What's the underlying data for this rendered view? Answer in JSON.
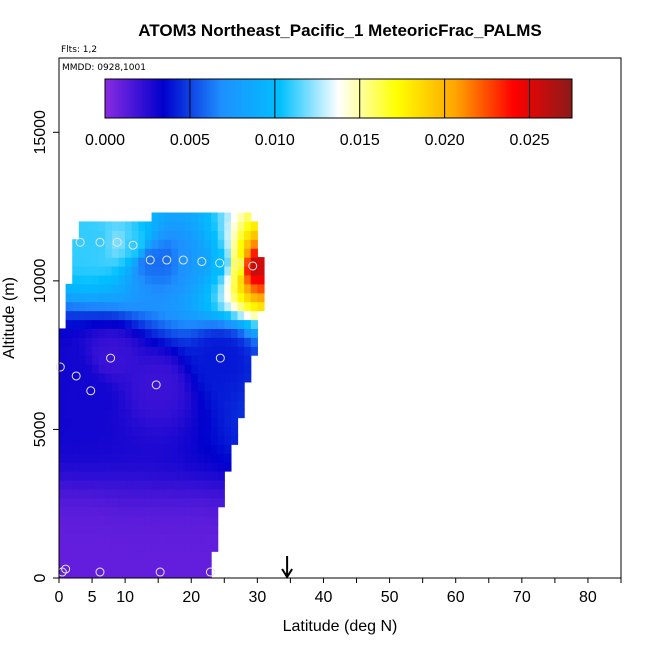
{
  "chart_data": {
    "type": "heatmap",
    "title": "ATOM3 Northeast_Pacific_1 MeteoricFrac_PALMS",
    "subtitle": "Flts: 1,2",
    "date_label": "MMDD: 0928,1001",
    "xlabel": "Latitude (deg N)",
    "ylabel": "Altitude (m)",
    "xlim": [
      0,
      85
    ],
    "ylim": [
      0,
      17500
    ],
    "x_ticks": [
      0,
      5,
      10,
      20,
      30,
      40,
      50,
      60,
      70,
      80
    ],
    "y_ticks": [
      0,
      5000,
      10000,
      15000
    ],
    "colorbar": {
      "range": [
        0,
        0.0275
      ],
      "tick_values": [
        0.0,
        0.005,
        0.01,
        0.015,
        0.02,
        0.025
      ],
      "tick_labels": [
        "0.000",
        "0.005",
        "0.010",
        "0.015",
        "0.020",
        "0.025"
      ],
      "colors": [
        "#8a2be2",
        "#0000cd",
        "#1e90ff",
        "#00bfff",
        "#ffffff",
        "#ffff00",
        "#ffa500",
        "#ff0000",
        "#8b1a1a"
      ]
    },
    "field_extent": {
      "lat_min": 0,
      "lat_max": 31,
      "alt_max": 12400,
      "top_edge": [
        [
          0,
          7900
        ],
        [
          1,
          8800
        ],
        [
          2,
          10800
        ],
        [
          3,
          12000
        ],
        [
          14,
          12000
        ],
        [
          14.5,
          12400
        ],
        [
          29,
          12400
        ],
        [
          30,
          11800
        ],
        [
          31,
          10000
        ],
        [
          30,
          8000
        ],
        [
          28,
          6000
        ],
        [
          26,
          4000
        ],
        [
          24,
          2000
        ],
        [
          23,
          0
        ]
      ]
    },
    "sample_points": [
      {
        "lat": 0.2,
        "alt": 7100,
        "value": 0.003
      },
      {
        "lat": 0.5,
        "alt": 200,
        "value": 0.001
      },
      {
        "lat": 1.0,
        "alt": 300,
        "value": 0.001
      },
      {
        "lat": 2.6,
        "alt": 6800,
        "value": 0.003
      },
      {
        "lat": 3.2,
        "alt": 11300,
        "value": 0.011
      },
      {
        "lat": 4.8,
        "alt": 6300,
        "value": 0.003
      },
      {
        "lat": 6.2,
        "alt": 200,
        "value": 0.001
      },
      {
        "lat": 6.2,
        "alt": 11300,
        "value": 0.011
      },
      {
        "lat": 7.8,
        "alt": 7400,
        "value": 0.002
      },
      {
        "lat": 8.8,
        "alt": 11300,
        "value": 0.012
      },
      {
        "lat": 11.2,
        "alt": 11200,
        "value": 0.011
      },
      {
        "lat": 13.8,
        "alt": 10700,
        "value": 0.006
      },
      {
        "lat": 14.7,
        "alt": 6500,
        "value": 0.002
      },
      {
        "lat": 15.3,
        "alt": 200,
        "value": 0.001
      },
      {
        "lat": 16.3,
        "alt": 10700,
        "value": 0.006
      },
      {
        "lat": 18.8,
        "alt": 10700,
        "value": 0.007
      },
      {
        "lat": 21.6,
        "alt": 10650,
        "value": 0.008
      },
      {
        "lat": 22.9,
        "alt": 200,
        "value": 0.001
      },
      {
        "lat": 24.3,
        "alt": 10600,
        "value": 0.01
      },
      {
        "lat": 24.4,
        "alt": 7400,
        "value": 0.004
      },
      {
        "lat": 27.2,
        "alt": 10550,
        "value": 0.016
      },
      {
        "lat": 29.3,
        "alt": 10500,
        "value": 0.026
      }
    ],
    "marker": {
      "lat": 34.5,
      "alt": 0,
      "shape": "down-arrow"
    }
  }
}
